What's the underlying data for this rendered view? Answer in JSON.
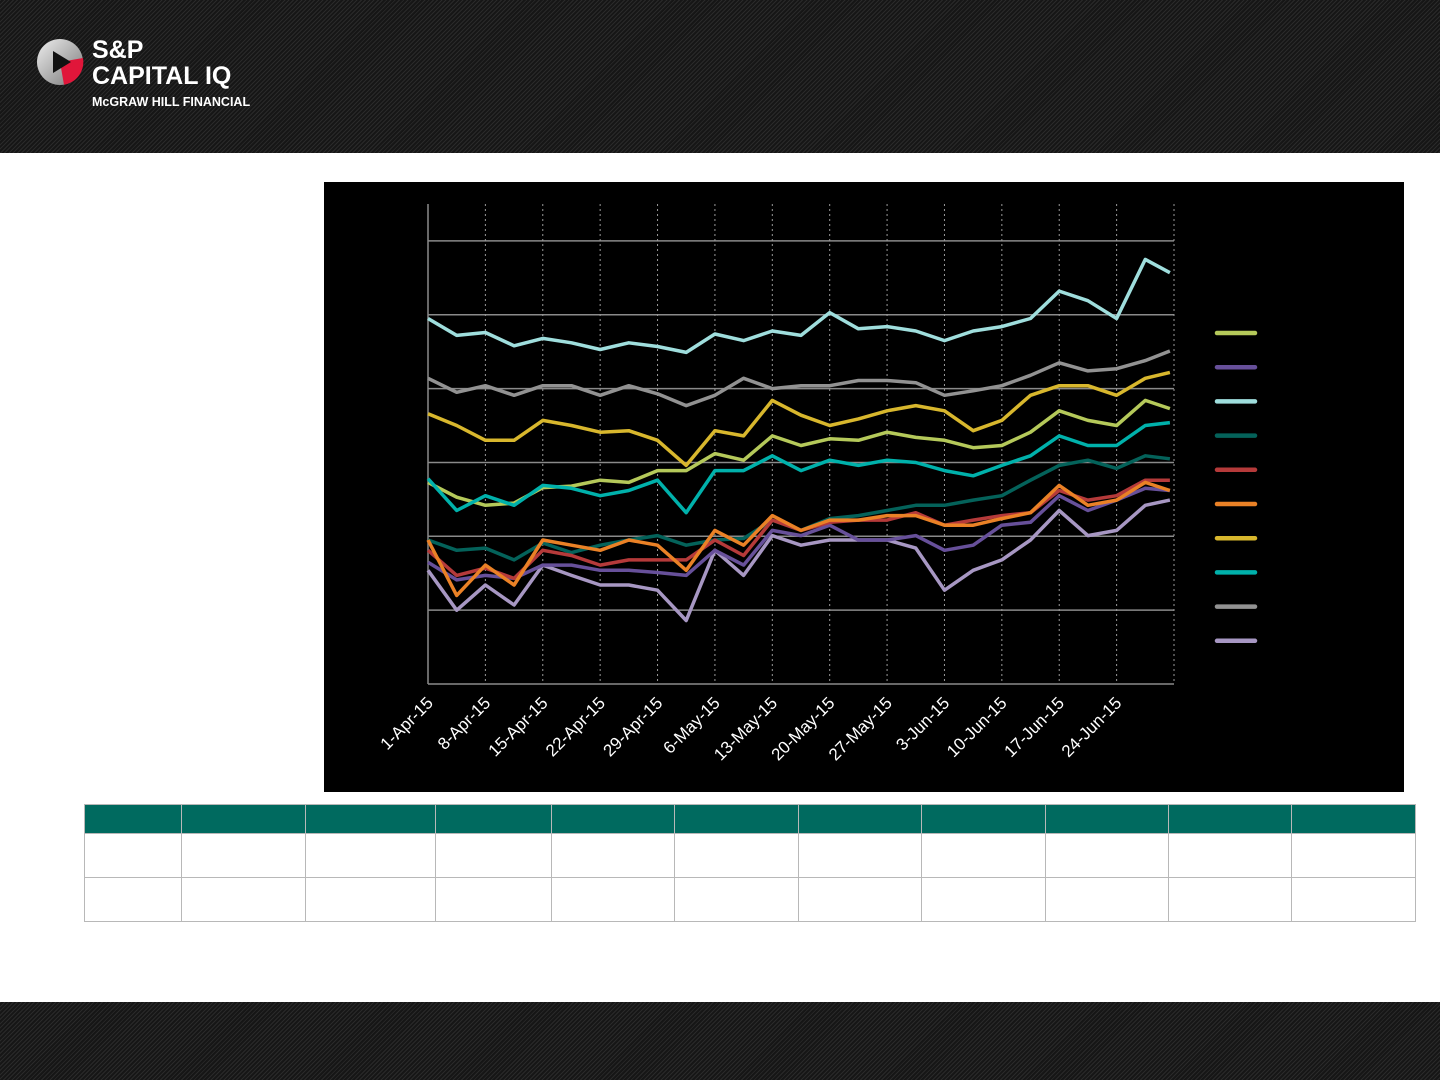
{
  "brand": {
    "line1": "S&P",
    "line2": "CAPITAL IQ",
    "line3": "McGRAW HILL FINANCIAL"
  },
  "colors": {
    "table_header": "#006a5f",
    "chart_bg": "#000000"
  },
  "chart_data": {
    "type": "line",
    "title": "",
    "xlabel": "",
    "ylabel": "",
    "x_unit": "days since 1-Apr-15",
    "x": [
      0,
      3.5,
      7,
      10.5,
      14,
      17.5,
      21,
      24.5,
      28,
      31.5,
      35,
      38.5,
      42,
      45.5,
      49,
      52.5,
      56,
      59.5,
      63,
      66.5,
      70,
      73.5,
      77,
      80.5,
      84,
      87.5,
      90.5
    ],
    "xlim": [
      0,
      91
    ],
    "ylim": [
      0,
      6.5
    ],
    "y_gridlines": [
      1,
      2,
      3,
      4,
      5,
      6
    ],
    "x_ticks": [
      {
        "day": 0,
        "label": "1-Apr-15"
      },
      {
        "day": 7,
        "label": "8-Apr-15"
      },
      {
        "day": 14,
        "label": "15-Apr-15"
      },
      {
        "day": 21,
        "label": "22-Apr-15"
      },
      {
        "day": 28,
        "label": "29-Apr-15"
      },
      {
        "day": 35,
        "label": "6-May-15"
      },
      {
        "day": 42,
        "label": "13-May-15"
      },
      {
        "day": 49,
        "label": "20-May-15"
      },
      {
        "day": 56,
        "label": "27-May-15"
      },
      {
        "day": 63,
        "label": "3-Jun-15"
      },
      {
        "day": 70,
        "label": "10-Jun-15"
      },
      {
        "day": 77,
        "label": "17-Jun-15"
      },
      {
        "day": 84,
        "label": "24-Jun-15"
      }
    ],
    "grid": true,
    "legend_position": "right",
    "series": [
      {
        "color": "#b5c95a",
        "values": [
          2.73,
          2.53,
          2.42,
          2.45,
          2.66,
          2.68,
          2.76,
          2.73,
          2.89,
          2.89,
          3.12,
          3.03,
          3.36,
          3.23,
          3.32,
          3.3,
          3.41,
          3.34,
          3.3,
          3.2,
          3.23,
          3.41,
          3.7,
          3.57,
          3.5,
          3.84,
          3.73
        ]
      },
      {
        "color": "#67509a",
        "values": [
          1.65,
          1.41,
          1.47,
          1.43,
          1.61,
          1.61,
          1.54,
          1.54,
          1.51,
          1.47,
          1.81,
          1.61,
          2.08,
          2.01,
          2.15,
          1.95,
          1.95,
          2.01,
          1.81,
          1.88,
          2.15,
          2.19,
          2.55,
          2.35,
          2.49,
          2.65,
          2.62
        ]
      },
      {
        "color": "#9fdedd",
        "values": [
          4.95,
          4.72,
          4.76,
          4.58,
          4.68,
          4.62,
          4.53,
          4.62,
          4.57,
          4.49,
          4.74,
          4.65,
          4.78,
          4.72,
          5.03,
          4.81,
          4.84,
          4.78,
          4.65,
          4.78,
          4.84,
          4.95,
          5.32,
          5.19,
          4.95,
          5.75,
          5.57
        ]
      },
      {
        "color": "#04625a",
        "values": [
          1.95,
          1.81,
          1.84,
          1.68,
          1.91,
          1.78,
          1.88,
          1.95,
          2.01,
          1.88,
          1.95,
          1.97,
          2.22,
          2.08,
          2.24,
          2.28,
          2.35,
          2.42,
          2.42,
          2.49,
          2.55,
          2.76,
          2.96,
          3.03,
          2.92,
          3.09,
          3.05
        ]
      },
      {
        "color": "#b53a3a",
        "values": [
          1.81,
          1.47,
          1.57,
          1.43,
          1.81,
          1.74,
          1.61,
          1.68,
          1.68,
          1.68,
          1.95,
          1.74,
          2.22,
          2.08,
          2.19,
          2.22,
          2.22,
          2.32,
          2.15,
          2.22,
          2.28,
          2.32,
          2.62,
          2.49,
          2.55,
          2.76,
          2.76
        ]
      },
      {
        "color": "#ea8126",
        "values": [
          1.95,
          1.2,
          1.61,
          1.34,
          1.95,
          1.88,
          1.81,
          1.95,
          1.88,
          1.54,
          2.08,
          1.88,
          2.28,
          2.08,
          2.22,
          2.22,
          2.28,
          2.28,
          2.15,
          2.15,
          2.24,
          2.32,
          2.69,
          2.42,
          2.49,
          2.73,
          2.62
        ]
      },
      {
        "color": "#d8b72d",
        "values": [
          3.66,
          3.5,
          3.3,
          3.3,
          3.57,
          3.5,
          3.41,
          3.43,
          3.3,
          2.96,
          3.43,
          3.36,
          3.84,
          3.64,
          3.5,
          3.59,
          3.7,
          3.77,
          3.7,
          3.43,
          3.57,
          3.91,
          4.04,
          4.04,
          3.91,
          4.14,
          4.22
        ]
      },
      {
        "color": "#00b1ab",
        "values": [
          2.78,
          2.35,
          2.55,
          2.42,
          2.69,
          2.65,
          2.55,
          2.62,
          2.76,
          2.32,
          2.89,
          2.89,
          3.09,
          2.89,
          3.03,
          2.96,
          3.03,
          3.0,
          2.89,
          2.82,
          2.96,
          3.09,
          3.36,
          3.23,
          3.23,
          3.5,
          3.54
        ]
      },
      {
        "color": "#929292",
        "values": [
          4.14,
          3.95,
          4.04,
          3.91,
          4.04,
          4.04,
          3.91,
          4.04,
          3.93,
          3.77,
          3.91,
          4.14,
          4.0,
          4.04,
          4.04,
          4.11,
          4.11,
          4.08,
          3.91,
          3.97,
          4.04,
          4.18,
          4.35,
          4.24,
          4.27,
          4.38,
          4.51
        ]
      },
      {
        "color": "#a797c3",
        "values": [
          1.54,
          1.0,
          1.34,
          1.07,
          1.61,
          1.47,
          1.34,
          1.34,
          1.27,
          0.86,
          1.81,
          1.47,
          2.01,
          1.88,
          1.95,
          1.95,
          1.95,
          1.84,
          1.27,
          1.54,
          1.68,
          1.95,
          2.35,
          2.01,
          2.08,
          2.42,
          2.49
        ]
      }
    ]
  },
  "table": {
    "columns": 11,
    "rows": 2
  }
}
